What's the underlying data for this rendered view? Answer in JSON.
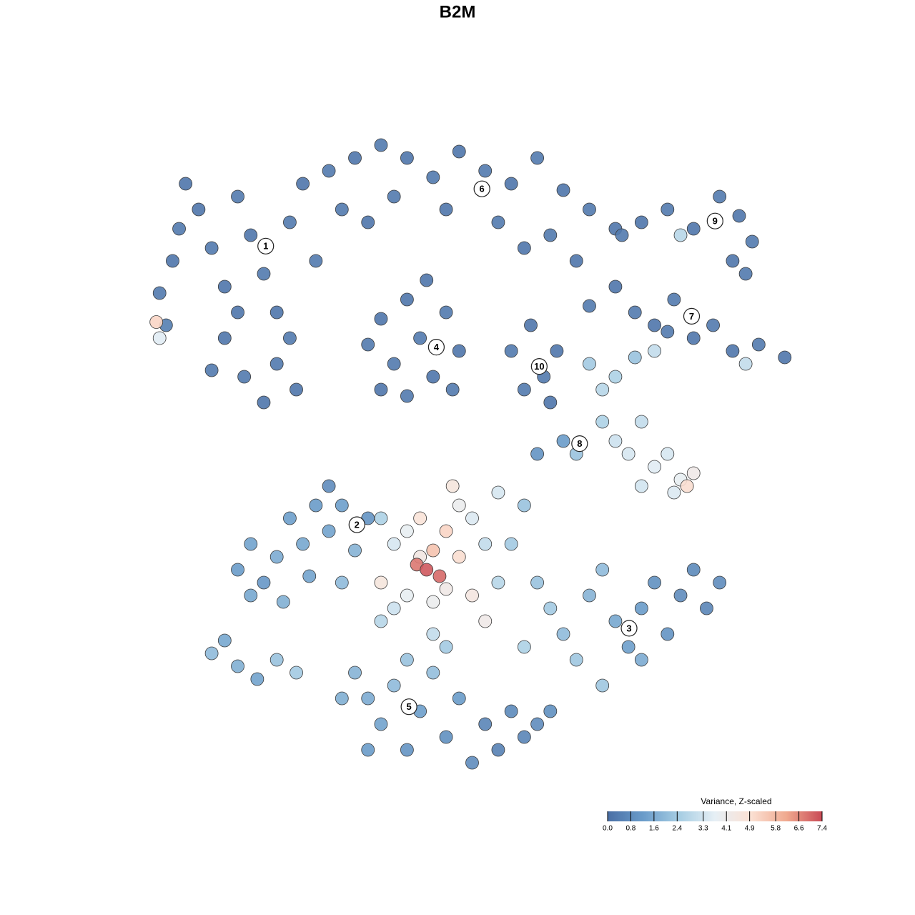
{
  "chart_data": {
    "type": "scatter",
    "title": "B2M",
    "xlim": [
      0,
      100
    ],
    "ylim": [
      0,
      100
    ],
    "x": [
      2,
      4,
      5,
      3,
      8,
      10,
      12,
      14,
      16,
      18,
      20,
      22,
      24,
      26,
      12,
      15,
      18,
      20,
      23,
      10,
      14,
      22,
      6,
      2,
      1.5,
      28,
      32,
      36,
      40,
      44,
      48,
      52,
      56,
      60,
      64,
      68,
      72,
      30,
      34,
      38,
      46,
      54,
      58,
      62,
      66,
      34,
      36,
      38,
      40,
      42,
      44,
      46,
      48,
      40,
      36,
      47,
      43,
      56,
      59,
      61,
      63,
      58,
      62,
      73,
      76,
      80,
      84,
      88,
      91,
      93,
      90,
      82,
      92,
      68,
      72,
      75,
      78,
      81,
      84,
      87,
      90,
      94,
      98,
      92,
      80,
      68,
      70,
      72,
      75,
      78,
      70,
      72,
      74,
      76,
      78,
      80,
      82,
      84,
      81,
      76,
      66,
      64,
      60,
      83,
      14,
      16,
      18,
      20,
      22,
      24,
      26,
      28,
      30,
      32,
      16,
      21,
      25,
      28,
      34,
      30,
      10,
      12,
      14,
      17,
      20,
      23,
      36,
      38,
      40,
      42,
      41.5,
      43,
      45,
      44,
      46,
      42,
      48,
      50,
      52,
      48,
      46,
      44,
      40,
      38,
      36,
      50,
      52,
      54,
      56,
      58,
      54,
      47,
      36,
      44,
      60,
      62,
      64,
      66,
      68,
      70,
      72,
      74,
      76,
      78,
      80,
      82,
      84,
      86,
      88,
      76,
      70,
      58,
      32,
      34,
      36,
      38,
      40,
      42,
      44,
      46,
      48,
      50,
      52,
      54,
      56,
      58,
      60,
      46,
      40,
      30,
      34,
      62
    ],
    "y": [
      75,
      80,
      85,
      70,
      88,
      82,
      76,
      90,
      84,
      78,
      72,
      86,
      92,
      80,
      68,
      62,
      58,
      64,
      60,
      63,
      72,
      68,
      92,
      68,
      70.5,
      94,
      96,
      98,
      96,
      93,
      97,
      94,
      92,
      96,
      91,
      88,
      85,
      88,
      86,
      90,
      88,
      86,
      82,
      84,
      80,
      67,
      71,
      64,
      74,
      68,
      62,
      72,
      66,
      59,
      60,
      60,
      77,
      66,
      70,
      62,
      66,
      60,
      58,
      84,
      86,
      88,
      85,
      90,
      87,
      83,
      80,
      84,
      78,
      73,
      76,
      72,
      70,
      74,
      68,
      70,
      66,
      67,
      65,
      64,
      69,
      64,
      60,
      62,
      65,
      66,
      55,
      52,
      50,
      55,
      48,
      50,
      46,
      47,
      44,
      45,
      50,
      52,
      50,
      45,
      32,
      36,
      30,
      34,
      40,
      36,
      42,
      38,
      42,
      35,
      28,
      27,
      31,
      45,
      40,
      30,
      19,
      21,
      17,
      15,
      18,
      16,
      40,
      36,
      38,
      34,
      32.8,
      32,
      31,
      35,
      38,
      40,
      42,
      40,
      36,
      34,
      29,
      27,
      28,
      26,
      30,
      28,
      24,
      30,
      36,
      42,
      44,
      45,
      24,
      22,
      30,
      26,
      22,
      18,
      28,
      32,
      24,
      20,
      26,
      30,
      22,
      28,
      32,
      26,
      30,
      18,
      14,
      20,
      16,
      12,
      8,
      14,
      4,
      10,
      16,
      6,
      12,
      2,
      8,
      4,
      10,
      6,
      8,
      20,
      18,
      12,
      4,
      10
    ],
    "values": [
      0.3,
      0.2,
      0.3,
      0.4,
      0.2,
      0.3,
      0.2,
      0.3,
      0.2,
      0.3,
      0.2,
      0.3,
      0.2,
      0.3,
      0.2,
      0.3,
      0.2,
      0.3,
      0.2,
      0.3,
      0.2,
      0.3,
      0.2,
      3.6,
      5.2,
      0.3,
      0.2,
      0.3,
      0.2,
      0.3,
      0.2,
      0.3,
      0.2,
      0.3,
      0.2,
      0.3,
      0.2,
      0.3,
      0.2,
      0.3,
      0.2,
      0.3,
      0.2,
      0.3,
      0.2,
      0.3,
      0.2,
      0.3,
      0.2,
      0.3,
      0.2,
      0.3,
      0.2,
      0.3,
      0.2,
      0.3,
      0.2,
      0.3,
      0.2,
      0.3,
      0.2,
      0.3,
      0.2,
      0.3,
      0.2,
      0.3,
      0.2,
      0.3,
      0.2,
      0.3,
      0.2,
      2.8,
      0.3,
      0.3,
      0.2,
      0.3,
      0.2,
      0.3,
      0.2,
      0.3,
      0.2,
      0.3,
      0.2,
      3.0,
      0.3,
      2.4,
      2.8,
      2.6,
      2.2,
      3.0,
      2.6,
      3.2,
      3.4,
      3.0,
      3.6,
      3.4,
      3.8,
      4.2,
      3.5,
      3.3,
      2.2,
      1.2,
      1.0,
      5.0,
      1.2,
      1.4,
      1.1,
      1.6,
      1.3,
      1.5,
      1.2,
      1.4,
      1.3,
      1.8,
      1.5,
      1.7,
      1.4,
      0.8,
      1.0,
      2.0,
      2.0,
      1.5,
      1.7,
      1.4,
      2.2,
      2.4,
      2.6,
      3.4,
      3.8,
      4.4,
      6.8,
      7.2,
      7.0,
      5.6,
      5.2,
      4.8,
      4.0,
      3.5,
      3.0,
      5.0,
      4.3,
      4.0,
      3.8,
      3.2,
      4.6,
      4.5,
      4.2,
      2.8,
      2.4,
      2.2,
      3.4,
      4.6,
      2.8,
      3.0,
      2.2,
      2.4,
      2.0,
      2.3,
      1.8,
      2.0,
      1.5,
      1.3,
      1.2,
      0.9,
      1.0,
      0.8,
      0.7,
      0.6,
      0.8,
      1.6,
      2.3,
      2.6,
      1.8,
      1.6,
      1.4,
      2.0,
      1.0,
      1.3,
      2.1,
      0.9,
      1.2,
      0.8,
      0.6,
      0.5,
      0.7,
      0.6,
      0.8,
      2.4,
      2.2,
      1.7,
      1.2,
      0.9
    ],
    "cluster_labels": {
      "labels": [
        "1",
        "2",
        "3",
        "4",
        "5",
        "6",
        "7",
        "8",
        "9",
        "10"
      ],
      "x": [
        18.3,
        32.3,
        74.1,
        44.5,
        40.3,
        51.5,
        83.7,
        66.5,
        87.3,
        60.3
      ],
      "y": [
        82.3,
        39,
        22.9,
        66.6,
        10.7,
        91.2,
        71.4,
        51.6,
        86.2,
        63.6
      ]
    },
    "colorbar": {
      "title": "Variance, Z-scaled",
      "clim": [
        0,
        7.4
      ],
      "colors": [
        "#4a6fa5",
        "#6a9cca",
        "#a6cde3",
        "#e6eff5",
        "#fbe1d4",
        "#f0a98f",
        "#c94a55"
      ],
      "ticks": [
        {
          "value": 0,
          "label": "0.0"
        },
        0.8,
        1.6,
        2.4,
        3.3,
        4.1,
        4.9,
        5.8,
        6.6,
        7.4
      ]
    }
  }
}
